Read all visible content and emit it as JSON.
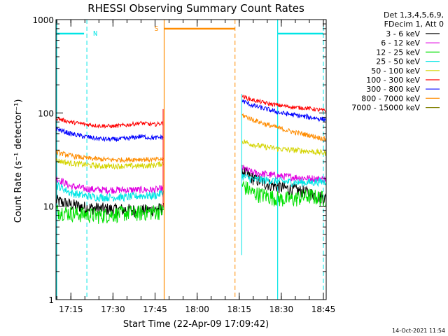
{
  "chart_data": {
    "type": "line",
    "title": "RHESSI Observing Summary Count Rates",
    "xlabel": "Start Time (22-Apr-09 17:09:42)",
    "ylabel": "Count Rate (s⁻¹ detector⁻¹)",
    "y_scale": "log",
    "ylim": [
      1,
      1000
    ],
    "xlim_minutes": [
      0,
      38.3,
      66.3,
      96.3
    ],
    "x_ticks": [
      "17:15",
      "17:30",
      "17:45",
      "18:00",
      "18:15",
      "18:30",
      "18:45"
    ],
    "y_ticks": [
      "1",
      "10",
      "100",
      "1000"
    ],
    "legend_position": "top-right",
    "legend_header": [
      "Det 1,3,4,5,6,9,",
      "FDecim 1, Att 0"
    ],
    "footer_timestamp": "14-Oct-2021 11:54",
    "flags": [
      {
        "label": "N",
        "color": "#00e5e5"
      },
      {
        "label": "S",
        "color": "#ff8c00"
      }
    ],
    "series": [
      {
        "name": "3 - 6 keV",
        "color": "#000000",
        "seg1": [
          [
            0,
            11.5
          ],
          [
            5,
            10.5
          ],
          [
            10,
            9.8
          ],
          [
            15,
            9.5
          ],
          [
            20,
            9.3
          ],
          [
            25,
            9.2
          ],
          [
            30,
            9.0
          ],
          [
            35,
            9.2
          ],
          [
            38.3,
            9.5
          ]
        ],
        "seg2": [
          [
            66.3,
            24
          ],
          [
            70,
            20
          ],
          [
            75,
            17.5
          ],
          [
            80,
            16
          ],
          [
            85,
            15
          ],
          [
            90,
            14
          ],
          [
            96.3,
            12
          ]
        ]
      },
      {
        "name": "6 - 12 keV",
        "color": "#e000e0",
        "seg1": [
          [
            0,
            20
          ],
          [
            5,
            16.5
          ],
          [
            10,
            15.5
          ],
          [
            15,
            15
          ],
          [
            20,
            15
          ],
          [
            25,
            15
          ],
          [
            30,
            15
          ],
          [
            35,
            15
          ],
          [
            38.3,
            15.5
          ]
        ],
        "seg2": [
          [
            66.3,
            26
          ],
          [
            70,
            23
          ],
          [
            75,
            22
          ],
          [
            80,
            21
          ],
          [
            85,
            20.5
          ],
          [
            90,
            20
          ],
          [
            96.3,
            19.5
          ]
        ]
      },
      {
        "name": "12 - 25 keV",
        "color": "#00e000",
        "seg1": [
          [
            0,
            9
          ],
          [
            5,
            8.5
          ],
          [
            10,
            8.2
          ],
          [
            15,
            8
          ],
          [
            20,
            8.2
          ],
          [
            25,
            8.5
          ],
          [
            30,
            8.5
          ],
          [
            35,
            8.8
          ],
          [
            38.3,
            9
          ]
        ],
        "seg2": [
          [
            66.3,
            17
          ],
          [
            70,
            14
          ],
          [
            75,
            13
          ],
          [
            80,
            12
          ],
          [
            85,
            12
          ],
          [
            90,
            13
          ],
          [
            96.3,
            12
          ]
        ]
      },
      {
        "name": "25 - 50 keV",
        "color": "#00e5e5",
        "seg1": [
          [
            0,
            17
          ],
          [
            5,
            14
          ],
          [
            10,
            13
          ],
          [
            15,
            12.5
          ],
          [
            20,
            12.5
          ],
          [
            25,
            12.5
          ],
          [
            30,
            13
          ],
          [
            35,
            13
          ],
          [
            38.3,
            14
          ]
        ],
        "seg2": [
          [
            66.3,
            21
          ],
          [
            70,
            19.5
          ],
          [
            75,
            19
          ],
          [
            80,
            18.5
          ],
          [
            85,
            18
          ],
          [
            90,
            18
          ],
          [
            96.3,
            18.5
          ]
        ]
      },
      {
        "name": "50 - 100 keV",
        "color": "#d4d400",
        "seg1": [
          [
            0,
            31
          ],
          [
            5,
            29
          ],
          [
            10,
            28
          ],
          [
            15,
            27
          ],
          [
            20,
            27
          ],
          [
            25,
            27
          ],
          [
            30,
            27
          ],
          [
            35,
            27.5
          ],
          [
            38.3,
            29
          ]
        ],
        "seg2": [
          [
            66.3,
            50
          ],
          [
            70,
            46
          ],
          [
            75,
            43
          ],
          [
            80,
            41
          ],
          [
            85,
            40
          ],
          [
            90,
            39
          ],
          [
            96.3,
            37
          ]
        ]
      },
      {
        "name": "100 - 300 keV",
        "color": "#ff0000",
        "seg1": [
          [
            0,
            88
          ],
          [
            5,
            80
          ],
          [
            10,
            76
          ],
          [
            15,
            73
          ],
          [
            20,
            72
          ],
          [
            25,
            74
          ],
          [
            30,
            78
          ],
          [
            35,
            75
          ],
          [
            38.3,
            78
          ]
        ],
        "seg2": [
          [
            66.3,
            150
          ],
          [
            70,
            138
          ],
          [
            75,
            127
          ],
          [
            80,
            120
          ],
          [
            85,
            115
          ],
          [
            90,
            112
          ],
          [
            96.3,
            105
          ]
        ]
      },
      {
        "name": "300 - 800 keV",
        "color": "#0000ff",
        "seg1": [
          [
            0,
            68
          ],
          [
            5,
            60
          ],
          [
            10,
            56
          ],
          [
            15,
            53
          ],
          [
            20,
            52
          ],
          [
            25,
            53
          ],
          [
            30,
            56
          ],
          [
            35,
            54
          ],
          [
            38.3,
            55
          ]
        ],
        "seg2": [
          [
            66.3,
            135
          ],
          [
            70,
            120
          ],
          [
            75,
            110
          ],
          [
            80,
            100
          ],
          [
            85,
            95
          ],
          [
            90,
            90
          ],
          [
            96.3,
            85
          ]
        ]
      },
      {
        "name": "800 - 7000 keV",
        "color": "#ff8c00",
        "seg1": [
          [
            0,
            38
          ],
          [
            5,
            35
          ],
          [
            10,
            33
          ],
          [
            15,
            32
          ],
          [
            20,
            31.5
          ],
          [
            25,
            31.5
          ],
          [
            30,
            32
          ],
          [
            35,
            31.5
          ],
          [
            38.3,
            32
          ]
        ],
        "seg2": [
          [
            66.3,
            95
          ],
          [
            70,
            85
          ],
          [
            75,
            75
          ],
          [
            80,
            68
          ],
          [
            85,
            62
          ],
          [
            90,
            58
          ],
          [
            96.3,
            52
          ]
        ]
      },
      {
        "name": "7000 - 15000 keV",
        "color": "#808000",
        "seg1": [],
        "seg2": []
      }
    ]
  }
}
